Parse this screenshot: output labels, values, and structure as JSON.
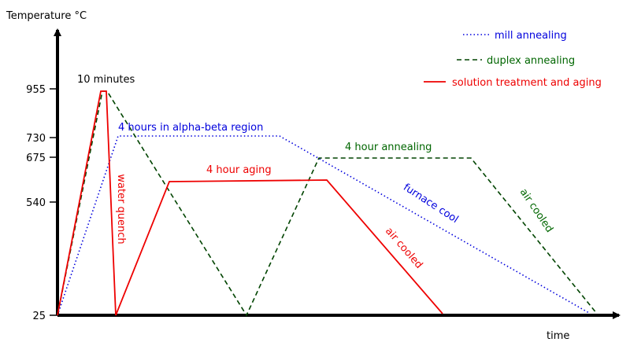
{
  "axes": {
    "y_label": "Temperature °C",
    "x_label": "time",
    "y_ticks": [
      "955",
      "730",
      "675",
      "540",
      "25"
    ]
  },
  "legend": [
    "mill annealing",
    "duplex annealing",
    "solution treatment and aging"
  ],
  "annotations": {
    "hold_time": "10 minutes",
    "alpha_beta": "4 hours in alpha-beta region",
    "water_quench": "water quench",
    "aging": "4 hour aging",
    "annealing": "4 hour annealing",
    "furnace_cool": "furnace cool",
    "air_cooled_aging": "air cooled",
    "air_cooled_duplex": "air cooled"
  }
}
